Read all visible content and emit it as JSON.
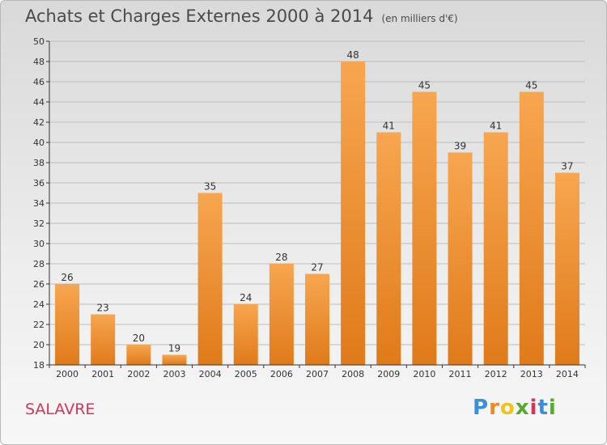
{
  "header": {
    "title": "Achats et Charges Externes 2000 à 2014",
    "subtitle": "(en milliers d'€)"
  },
  "commune": "SALAVRE",
  "brand": {
    "letters": [
      "P",
      "r",
      "o",
      "x",
      "i",
      "t",
      "i"
    ],
    "colors": [
      "#3a8fd6",
      "#e8892a",
      "#f2c21b",
      "#5aa832",
      "#d9335a",
      "#3a8fd6",
      "#5aa832"
    ]
  },
  "colors": {
    "bar_top": "#f7a650",
    "bar_bottom": "#e07a1a",
    "grid": "#bdbdbd",
    "axis": "#333333"
  },
  "chart_data": {
    "type": "bar",
    "title": "Achats et Charges Externes 2000 à 2014",
    "subtitle": "(en milliers d'€)",
    "categories": [
      "2000",
      "2001",
      "2002",
      "2003",
      "2004",
      "2005",
      "2006",
      "2007",
      "2008",
      "2009",
      "2010",
      "2011",
      "2012",
      "2013",
      "2014"
    ],
    "values": [
      26,
      23,
      20,
      19,
      35,
      24,
      28,
      27,
      48,
      41,
      45,
      39,
      41,
      45,
      37
    ],
    "ylim": [
      18,
      50
    ],
    "yticks": [
      18,
      20,
      22,
      24,
      26,
      28,
      30,
      32,
      34,
      36,
      38,
      40,
      42,
      44,
      46,
      48,
      50
    ],
    "xlabel": "",
    "ylabel": "",
    "grid": true
  }
}
